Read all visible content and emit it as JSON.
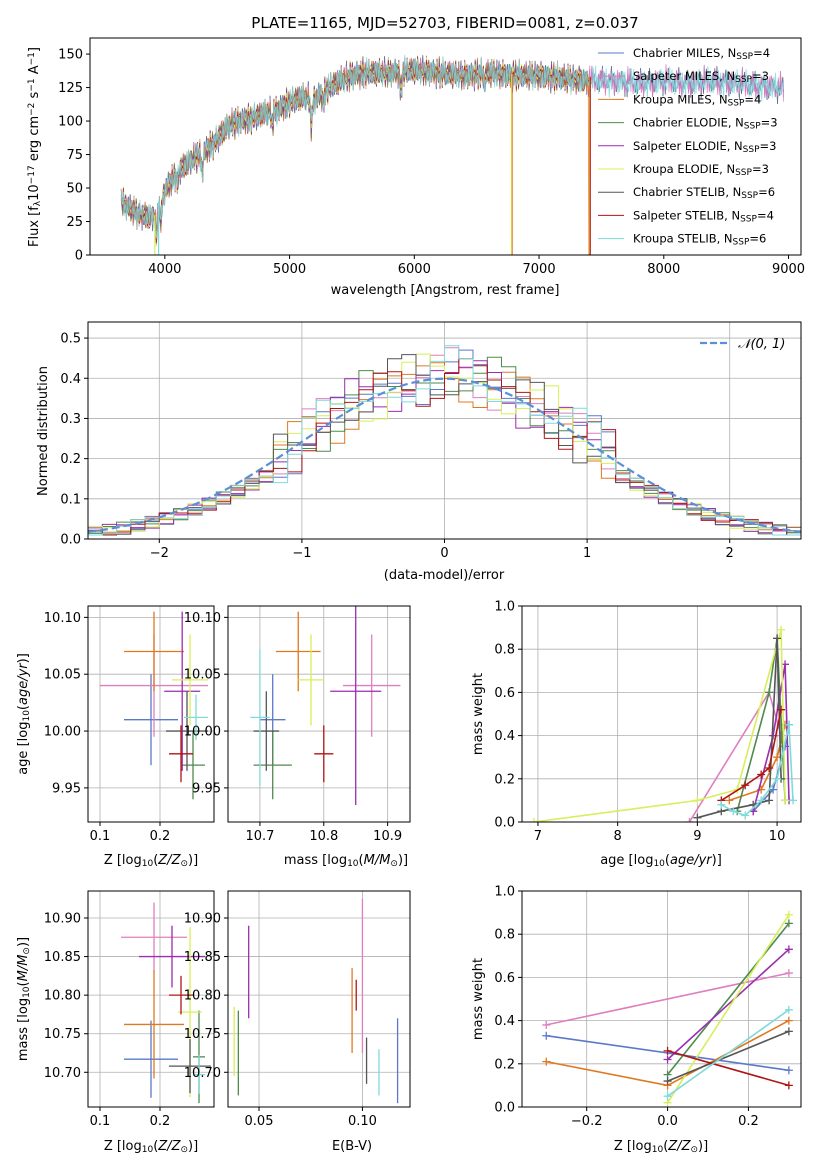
{
  "colors": {
    "chabrier_miles": "#5b79c9",
    "salpeter_miles": "#e07fc0",
    "kroupa_miles": "#e07820",
    "chabrier_elodie": "#4f8a4f",
    "salpeter_elodie": "#9a2db0",
    "kroupa_elodie": "#d8ee5a",
    "chabrier_stelib": "#555555",
    "salpeter_stelib": "#b01515",
    "kroupa_stelib": "#7fdada",
    "grid": "#b0b0b0"
  },
  "chart_data": [
    {
      "type": "line",
      "title": "PLATE=1165, MJD=52703, FIBERID=0081, z=0.037",
      "xlabel": "wavelength [Angstrom, rest frame]",
      "ylabel_parts": [
        "Flux [f",
        "λ",
        "10",
        "−17",
        " erg cm",
        "−2",
        " s",
        "−1",
        " A",
        "−1",
        "]"
      ],
      "xlim": [
        3400,
        9100
      ],
      "ylim": [
        0,
        162
      ],
      "xticks": [
        4000,
        5000,
        6000,
        7000,
        8000,
        9000
      ],
      "yticks": [
        0,
        25,
        50,
        75,
        100,
        125,
        150
      ],
      "grid": false,
      "legend_placement": "right",
      "legend": [
        {
          "key": "chabrier_miles",
          "label": "Chabrier MILES, N",
          "sub": "SSP",
          "suffix": "=4"
        },
        {
          "key": "salpeter_miles",
          "label": "Salpeter MILES, N",
          "sub": "SSP",
          "suffix": "=3"
        },
        {
          "key": "kroupa_miles",
          "label": "Kroupa MILES, N",
          "sub": "SSP",
          "suffix": "=4"
        },
        {
          "key": "chabrier_elodie",
          "label": "Chabrier ELODIE, N",
          "sub": "SSP",
          "suffix": "=3"
        },
        {
          "key": "salpeter_elodie",
          "label": "Salpeter ELODIE, N",
          "sub": "SSP",
          "suffix": "=3"
        },
        {
          "key": "kroupa_elodie",
          "label": "Kroupa ELODIE, N",
          "sub": "SSP",
          "suffix": "=3"
        },
        {
          "key": "chabrier_stelib",
          "label": "Chabrier STELIB, N",
          "sub": "SSP",
          "suffix": "=6"
        },
        {
          "key": "salpeter_stelib",
          "label": "Salpeter STELIB, N",
          "sub": "SSP",
          "suffix": "=4"
        },
        {
          "key": "kroupa_stelib",
          "label": "Kroupa STELIB, N",
          "sub": "SSP",
          "suffix": "=6"
        }
      ],
      "spectrum_continuum": {
        "x": [
          3650,
          3700,
          3800,
          3900,
          3950,
          4000,
          4100,
          4200,
          4300,
          4400,
          4500,
          4600,
          4700,
          4800,
          4900,
          5000,
          5100,
          5200,
          5300,
          5400,
          5500,
          5600,
          5800,
          6000,
          6200,
          6400,
          6600,
          6800,
          7000,
          7200,
          7400,
          7600,
          7800,
          8000,
          8200,
          8400,
          8600,
          8800,
          9000
        ],
        "y": [
          40,
          36,
          30,
          28,
          35,
          48,
          62,
          70,
          76,
          84,
          96,
          100,
          102,
          106,
          108,
          114,
          118,
          116,
          124,
          130,
          134,
          136,
          136,
          138,
          136,
          134,
          136,
          134,
          134,
          132,
          130,
          130,
          128,
          130,
          128,
          130,
          128,
          126,
          124
        ]
      }
    },
    {
      "type": "step",
      "xlabel": "(data-model)/error",
      "ylabel": "Normed distribution",
      "xlim": [
        -2.5,
        2.5
      ],
      "ylim": [
        0,
        0.54
      ],
      "xticks": [
        -2,
        -1,
        0,
        1,
        2
      ],
      "yticks": [
        0.0,
        0.1,
        0.2,
        0.3,
        0.4,
        0.5
      ],
      "grid": true,
      "legend_placement": "top-right",
      "legend": {
        "label": "𝒩(0, 1)",
        "color": "#5b8fd6"
      },
      "gaussian": {
        "mean": 0,
        "sigma": 1
      }
    },
    {
      "type": "errorbar",
      "xlabel": "Z [log10(Z/Z⊙)]",
      "ylabel": "age  [log10(age/yr)]",
      "xlim": [
        0.08,
        0.29
      ],
      "ylim": [
        9.92,
        10.11
      ],
      "xticks": [
        0.1,
        0.2
      ],
      "yticks": [
        9.95,
        10.0,
        10.05,
        10.1
      ],
      "grid": true,
      "points": [
        {
          "key": "chabrier_miles",
          "x": 0.185,
          "y": 10.01,
          "xerr": 0.045,
          "yerr": 0.04
        },
        {
          "key": "salpeter_miles",
          "x": 0.19,
          "y": 10.04,
          "xerr": 0.09,
          "yerr": 0.045
        },
        {
          "key": "kroupa_miles",
          "x": 0.19,
          "y": 10.07,
          "xerr": 0.05,
          "yerr": 0.035
        },
        {
          "key": "chabrier_elodie",
          "x": 0.255,
          "y": 9.97,
          "xerr": 0.02,
          "yerr": 0.03
        },
        {
          "key": "salpeter_elodie",
          "x": 0.237,
          "y": 10.035,
          "xerr": 0.03,
          "yerr": 0.07
        },
        {
          "key": "kroupa_elodie",
          "x": 0.25,
          "y": 10.045,
          "xerr": 0.03,
          "yerr": 0.04
        },
        {
          "key": "chabrier_stelib",
          "x": 0.245,
          "y": 10.0,
          "xerr": 0.035,
          "yerr": 0.035
        },
        {
          "key": "salpeter_stelib",
          "x": 0.235,
          "y": 9.98,
          "xerr": 0.02,
          "yerr": 0.025
        },
        {
          "key": "kroupa_stelib",
          "x": 0.26,
          "y": 10.012,
          "xerr": 0.02,
          "yerr": 0.02
        }
      ]
    },
    {
      "type": "errorbar",
      "xlabel": "mass [log10(M/M⊙)]",
      "xlim": [
        10.65,
        10.935
      ],
      "ylim": [
        9.92,
        10.11
      ],
      "xticks": [
        10.7,
        10.8,
        10.9
      ],
      "yticks": [
        9.95,
        10.0,
        10.05,
        10.1
      ],
      "grid": true,
      "points": [
        {
          "key": "chabrier_miles",
          "x": 10.72,
          "y": 10.01,
          "xerr": 0.02,
          "yerr": 0.04
        },
        {
          "key": "salpeter_miles",
          "x": 10.875,
          "y": 10.04,
          "xerr": 0.045,
          "yerr": 0.045
        },
        {
          "key": "kroupa_miles",
          "x": 10.76,
          "y": 10.07,
          "xerr": 0.035,
          "yerr": 0.035
        },
        {
          "key": "chabrier_elodie",
          "x": 10.72,
          "y": 9.97,
          "xerr": 0.03,
          "yerr": 0.03
        },
        {
          "key": "salpeter_elodie",
          "x": 10.85,
          "y": 10.035,
          "xerr": 0.04,
          "yerr": 0.1
        },
        {
          "key": "kroupa_elodie",
          "x": 10.78,
          "y": 10.045,
          "xerr": 0.02,
          "yerr": 0.04
        },
        {
          "key": "chabrier_stelib",
          "x": 10.71,
          "y": 10.0,
          "xerr": 0.02,
          "yerr": 0.035
        },
        {
          "key": "salpeter_stelib",
          "x": 10.8,
          "y": 9.98,
          "xerr": 0.015,
          "yerr": 0.025
        },
        {
          "key": "kroupa_stelib",
          "x": 10.7,
          "y": 10.012,
          "xerr": 0.015,
          "yerr": 0.06
        }
      ]
    },
    {
      "type": "line",
      "xlabel": "age  [log10(age/yr)]",
      "ylabel": "mass weight",
      "xlim": [
        6.8,
        10.3
      ],
      "ylim": [
        0.0,
        1.0
      ],
      "xticks": [
        7,
        8,
        9,
        10
      ],
      "yticks": [
        0.0,
        0.2,
        0.4,
        0.6,
        0.8,
        1.0
      ],
      "grid": true,
      "series": [
        {
          "key": "chabrier_miles",
          "x": [
            9.7,
            9.95,
            10.1,
            10.15
          ],
          "y": [
            0.05,
            0.15,
            0.35,
            0.45
          ]
        },
        {
          "key": "salpeter_miles",
          "x": [
            8.9,
            9.9,
            10.05
          ],
          "y": [
            0.0,
            0.6,
            0.4
          ]
        },
        {
          "key": "kroupa_miles",
          "x": [
            9.4,
            9.8,
            10.0,
            10.1
          ],
          "y": [
            0.1,
            0.15,
            0.3,
            0.45
          ]
        },
        {
          "key": "chabrier_elodie",
          "x": [
            9.5,
            9.9,
            10.0,
            10.1
          ],
          "y": [
            0.05,
            0.6,
            0.85,
            0.1
          ]
        },
        {
          "key": "salpeter_elodie",
          "x": [
            9.7,
            9.95,
            10.1,
            10.15
          ],
          "y": [
            0.05,
            0.4,
            0.73,
            0.1
          ]
        },
        {
          "key": "kroupa_elodie",
          "x": [
            6.95,
            9.0,
            9.5,
            10.05,
            10.1
          ],
          "y": [
            0.0,
            0.1,
            0.15,
            0.89,
            0.1
          ]
        },
        {
          "key": "chabrier_stelib",
          "x": [
            9.0,
            9.3,
            9.7,
            9.9,
            10.0,
            10.05
          ],
          "y": [
            0.02,
            0.05,
            0.08,
            0.1,
            0.85,
            0.2
          ]
        },
        {
          "key": "salpeter_stelib",
          "x": [
            9.3,
            9.6,
            9.8,
            9.9,
            10.05
          ],
          "y": [
            0.1,
            0.17,
            0.22,
            0.25,
            0.52
          ]
        },
        {
          "key": "kroupa_stelib",
          "x": [
            9.3,
            9.45,
            9.6,
            9.8,
            10.0,
            10.15,
            10.2
          ],
          "y": [
            0.08,
            0.05,
            0.03,
            0.1,
            0.2,
            0.45,
            0.1
          ]
        }
      ]
    },
    {
      "type": "errorbar",
      "xlabel": "Z [log10(Z/Z⊙)]",
      "ylabel": "mass [log10(M/M⊙)]",
      "xlim": [
        0.08,
        0.29
      ],
      "ylim": [
        10.655,
        10.935
      ],
      "xticks": [
        0.1,
        0.2
      ],
      "yticks": [
        10.7,
        10.75,
        10.8,
        10.85,
        10.9
      ],
      "grid": true,
      "points": [
        {
          "key": "chabrier_miles",
          "x": 0.185,
          "y": 10.717,
          "xerr": 0.045,
          "yerr": 0.05
        },
        {
          "key": "salpeter_miles",
          "x": 0.19,
          "y": 10.875,
          "xerr": 0.055,
          "yerr": 0.045
        },
        {
          "key": "kroupa_miles",
          "x": 0.19,
          "y": 10.762,
          "xerr": 0.05,
          "yerr": 0.07
        },
        {
          "key": "chabrier_elodie",
          "x": 0.265,
          "y": 10.72,
          "xerr": 0.01,
          "yerr": 0.06
        },
        {
          "key": "salpeter_elodie",
          "x": 0.22,
          "y": 10.85,
          "xerr": 0.055,
          "yerr": 0.04
        },
        {
          "key": "kroupa_elodie",
          "x": 0.25,
          "y": 10.778,
          "xerr": 0.02,
          "yerr": 0.11
        },
        {
          "key": "chabrier_stelib",
          "x": 0.25,
          "y": 10.708,
          "xerr": 0.035,
          "yerr": 0.035
        },
        {
          "key": "salpeter_stelib",
          "x": 0.235,
          "y": 10.8,
          "xerr": 0.02,
          "yerr": 0.025
        },
        {
          "key": "kroupa_stelib",
          "x": 0.265,
          "y": 10.697,
          "xerr": 0.01,
          "yerr": 0.025
        }
      ]
    },
    {
      "type": "errorbar",
      "xlabel": "E(B-V)",
      "xlim": [
        0.035,
        0.123
      ],
      "ylim": [
        10.655,
        10.935
      ],
      "xticks": [
        0.05,
        0.1
      ],
      "yticks": [
        10.7,
        10.75,
        10.8,
        10.85,
        10.9
      ],
      "grid": true,
      "points": [
        {
          "key": "chabrier_miles",
          "x": 0.117,
          "y": 10.715,
          "xerr": 0.0,
          "yerr": 0.055
        },
        {
          "key": "salpeter_miles",
          "x": 0.1,
          "y": 10.825,
          "xerr": 0.0,
          "yerr": 0.1
        },
        {
          "key": "kroupa_miles",
          "x": 0.095,
          "y": 10.78,
          "xerr": 0.0,
          "yerr": 0.055
        },
        {
          "key": "chabrier_elodie",
          "x": 0.04,
          "y": 10.725,
          "xerr": 0.0,
          "yerr": 0.055
        },
        {
          "key": "salpeter_elodie",
          "x": 0.045,
          "y": 10.83,
          "xerr": 0.0,
          "yerr": 0.06
        },
        {
          "key": "kroupa_elodie",
          "x": 0.038,
          "y": 10.74,
          "xerr": 0.0,
          "yerr": 0.045
        },
        {
          "key": "chabrier_stelib",
          "x": 0.102,
          "y": 10.715,
          "xerr": 0.0,
          "yerr": 0.03
        },
        {
          "key": "salpeter_stelib",
          "x": 0.097,
          "y": 10.8,
          "xerr": 0.0,
          "yerr": 0.02
        },
        {
          "key": "kroupa_stelib",
          "x": 0.108,
          "y": 10.7,
          "xerr": 0.0,
          "yerr": 0.03
        }
      ]
    },
    {
      "type": "line",
      "xlabel": "Z [log10(Z/Z⊙)]",
      "ylabel": "mass weight",
      "xlim": [
        -0.36,
        0.33
      ],
      "ylim": [
        0.0,
        1.0
      ],
      "xticks": [
        -0.2,
        0.0,
        0.2
      ],
      "yticks": [
        0.0,
        0.2,
        0.4,
        0.6,
        0.8,
        1.0
      ],
      "grid": true,
      "series": [
        {
          "key": "chabrier_miles",
          "x": [
            -0.3,
            0.3
          ],
          "y": [
            0.33,
            0.17
          ]
        },
        {
          "key": "salpeter_miles",
          "x": [
            -0.3,
            0.3
          ],
          "y": [
            0.38,
            0.62
          ]
        },
        {
          "key": "kroupa_miles",
          "x": [
            -0.3,
            0.0,
            0.3
          ],
          "y": [
            0.21,
            0.1,
            0.4
          ]
        },
        {
          "key": "chabrier_elodie",
          "x": [
            0.0,
            0.3
          ],
          "y": [
            0.15,
            0.85
          ]
        },
        {
          "key": "salpeter_elodie",
          "x": [
            0.0,
            0.3
          ],
          "y": [
            0.22,
            0.73
          ]
        },
        {
          "key": "kroupa_elodie",
          "x": [
            0.0,
            0.3
          ],
          "y": [
            0.02,
            0.89
          ]
        },
        {
          "key": "chabrier_stelib",
          "x": [
            0.0,
            0.3
          ],
          "y": [
            0.12,
            0.35
          ]
        },
        {
          "key": "salpeter_stelib",
          "x": [
            0.0,
            0.3
          ],
          "y": [
            0.26,
            0.1
          ]
        },
        {
          "key": "kroupa_stelib",
          "x": [
            0.0,
            0.3
          ],
          "y": [
            0.05,
            0.45
          ]
        }
      ]
    }
  ]
}
